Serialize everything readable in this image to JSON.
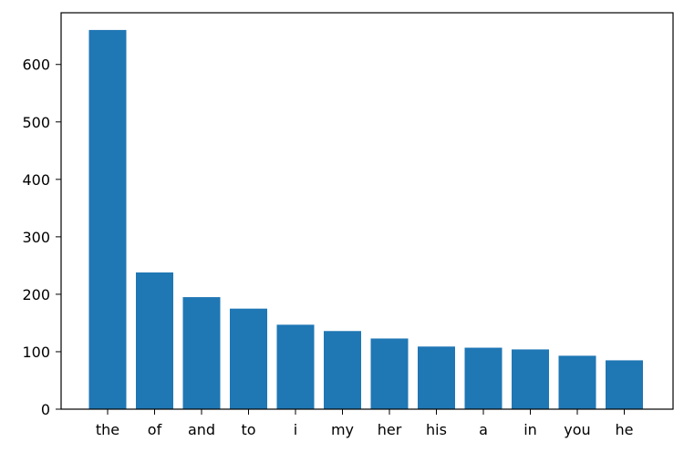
{
  "chart_data": {
    "type": "bar",
    "title": "",
    "xlabel": "",
    "ylabel": "",
    "categories": [
      "the",
      "of",
      "and",
      "to",
      "i",
      "my",
      "her",
      "his",
      "a",
      "in",
      "you",
      "he"
    ],
    "values": [
      660,
      238,
      195,
      175,
      147,
      136,
      123,
      109,
      107,
      104,
      93,
      85
    ],
    "ylim": [
      0,
      690
    ],
    "yticks": [
      0,
      100,
      200,
      300,
      400,
      500,
      600
    ],
    "ytick_labels": [
      "0",
      "100",
      "200",
      "300",
      "400",
      "500",
      "600"
    ],
    "grid": false,
    "legend": "none",
    "bar_color": "#1f77b4"
  }
}
